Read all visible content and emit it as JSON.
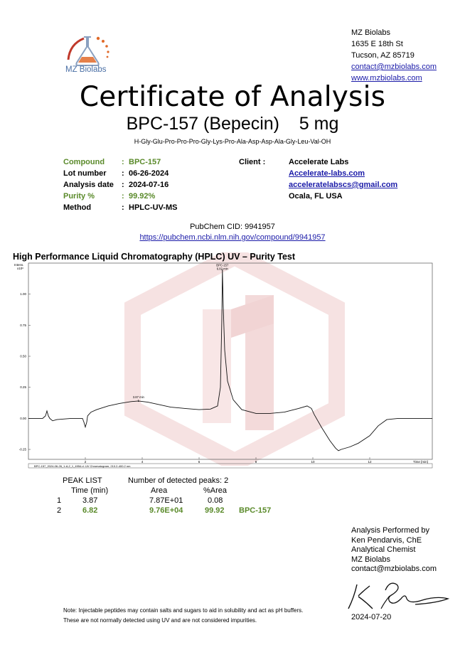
{
  "logo": {
    "text": "MZ Biolabs",
    "icon": "flask-icon"
  },
  "lab": {
    "name": "MZ Biolabs",
    "street": "1635 E 18th St",
    "city": "Tucson, AZ 85719",
    "email": "contact@mzbiolabs.com",
    "website": "www.mzbiolabs.com"
  },
  "title": "Certificate of Analysis",
  "product": "BPC-157 (Bepecin)    5 mg",
  "sequence": "H-Gly-Glu-Pro-Pro-Pro-Gly-Lys-Pro-Ala-Asp-Asp-Ala-Gly-Leu-Val-OH",
  "info": {
    "compound_label": "Compound",
    "compound": "BPC-157",
    "lot_label": "Lot number",
    "lot": "06-26-2024",
    "date_label": "Analysis date",
    "date": "2024-07-16",
    "purity_label": "Purity %",
    "purity": "99.92%",
    "method_label": "Method",
    "method": "HPLC-UV-MS",
    "colon": ":"
  },
  "client": {
    "label": "Client :",
    "name": "Accelerate Labs",
    "website": "Accelerate-labs.com",
    "email": "acceleratelabscs@gmail.com",
    "location": "Ocala, FL USA"
  },
  "pubchem": {
    "cid": "PubChem CID: 9941957",
    "url": "https://pubchem.ncbi.nlm.nih.gov/compound/9941957"
  },
  "hplc_title": "High Performance Liquid Chromatography (HPLC) UV – Purity Test",
  "chart_data": {
    "type": "line",
    "ylabel": "Intens. x10^6",
    "y_unit_label_line1": "Intens.",
    "y_unit_label_line2": "x10⁶",
    "xlabel": "Time [min]",
    "xlim": [
      0,
      14.2
    ],
    "ylim": [
      -0.33,
      1.25
    ],
    "x_ticks": [
      2,
      4,
      6,
      8,
      10,
      12
    ],
    "y_ticks": [
      -0.25,
      0.0,
      0.25,
      0.5,
      0.75,
      1.0
    ],
    "y_tick_labels": [
      "-0.25",
      "0.00",
      "0.25",
      "0.50",
      "0.75",
      "1.00"
    ],
    "legend_text": "BPC-157_2024-06-26_1-A,2_1_4954.d: UV Chromatogram, 210.2-400.2 nm",
    "annotations": [
      {
        "label_line1": "BPC-157",
        "label_line2": "6.82 min",
        "x": 6.82,
        "y": 1.2
      },
      {
        "label_line1": "3.87 min",
        "label_line2": "1",
        "x": 3.87,
        "y": 0.14
      }
    ],
    "series": [
      {
        "x": [
          0,
          0.5,
          0.6,
          0.65,
          0.7,
          0.75,
          0.85,
          1.0,
          1.5,
          1.9,
          1.95,
          2.0,
          2.05,
          2.08,
          2.12,
          2.2,
          2.4,
          2.8,
          3.2,
          3.6,
          3.87,
          4.2,
          4.6,
          5.0,
          5.5,
          6.0,
          6.4,
          6.65,
          6.75,
          6.8,
          6.82,
          6.85,
          6.9,
          7.0,
          7.2,
          7.5,
          8.0,
          8.5,
          9.0,
          9.5,
          9.8,
          9.95,
          10.05,
          10.3,
          10.6,
          10.8,
          10.9,
          11.0,
          11.3,
          11.6,
          12.0,
          12.3,
          12.6,
          13.0,
          13.5,
          14.0,
          14.2
        ],
        "y": [
          0.0,
          0.0,
          0.02,
          0.06,
          0.02,
          0.0,
          -0.02,
          -0.01,
          0.0,
          0.0,
          -0.03,
          -0.07,
          -0.03,
          0.02,
          0.03,
          0.05,
          0.07,
          0.1,
          0.12,
          0.135,
          0.14,
          0.13,
          0.11,
          0.09,
          0.08,
          0.07,
          0.075,
          0.1,
          0.25,
          0.8,
          1.2,
          0.9,
          0.55,
          0.3,
          0.15,
          0.07,
          0.04,
          0.04,
          0.05,
          0.08,
          0.1,
          0.08,
          0.03,
          -0.07,
          -0.18,
          -0.24,
          -0.26,
          -0.25,
          -0.23,
          -0.2,
          -0.14,
          -0.06,
          -0.01,
          0.0,
          0.0,
          0.0,
          0.0
        ]
      }
    ]
  },
  "peak_list": {
    "title": "PEAK LIST",
    "detected": "Number of detected peaks: 2",
    "headers": [
      "Time (min)",
      "Area",
      "%Area"
    ],
    "rows": [
      {
        "num": "1",
        "time": "3.87",
        "area": "7.87E+01",
        "pct": "0.08",
        "name": ""
      },
      {
        "num": "2",
        "time": "6.82",
        "area": "9.76E+04",
        "pct": "99.92",
        "name": "BPC-157"
      }
    ]
  },
  "performed": {
    "line1": "Analysis Performed by",
    "line2": "Ken Pendarvis, ChE",
    "line3": "Analytical Chemist",
    "line4": "MZ Biolabs",
    "line5": "contact@mzbiolabs.com",
    "date": "2024-07-20"
  },
  "note": {
    "line1": "Note: Injectable peptides may contain salts and sugars to aid in solubility and act as pH buffers.",
    "line2": "These are not normally detected using UV and are not considered impurities."
  },
  "colors": {
    "accent_green": "#5a8a2a",
    "link": "#1a1aa8",
    "logo_blue": "#4a6fa5",
    "logo_orange": "#e06a2a",
    "watermark": "#f4dede"
  }
}
